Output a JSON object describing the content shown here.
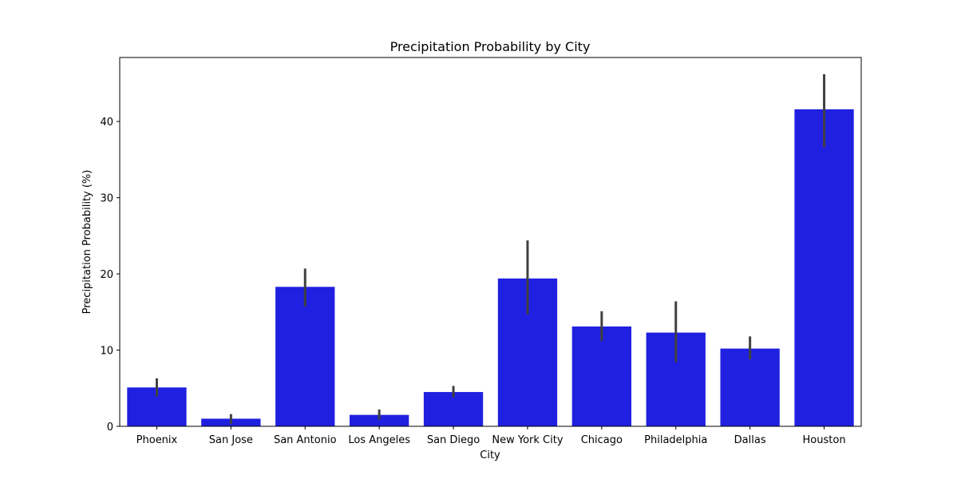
{
  "chart_data": {
    "type": "bar",
    "title": "Precipitation Probability by City",
    "xlabel": "City",
    "ylabel": "Precipitation Probability (%)",
    "categories": [
      "Phoenix",
      "San Jose",
      "San Antonio",
      "Los Angeles",
      "San Diego",
      "New York City",
      "Chicago",
      "Philadelphia",
      "Dallas",
      "Houston"
    ],
    "values": [
      5.1,
      1.0,
      18.3,
      1.5,
      4.5,
      19.4,
      13.1,
      12.3,
      10.2,
      41.6
    ],
    "error_low": [
      3.9,
      0.3,
      15.7,
      0.9,
      3.8,
      14.7,
      11.2,
      8.4,
      8.8,
      36.6
    ],
    "error_high": [
      6.3,
      1.6,
      20.7,
      2.2,
      5.3,
      24.4,
      15.1,
      16.4,
      11.8,
      46.2
    ],
    "ylim": [
      0,
      48.4
    ],
    "yticks": [
      0,
      10,
      20,
      30,
      40
    ],
    "grid": false,
    "bar_color": "#2020e0",
    "error_color": "#404040"
  }
}
